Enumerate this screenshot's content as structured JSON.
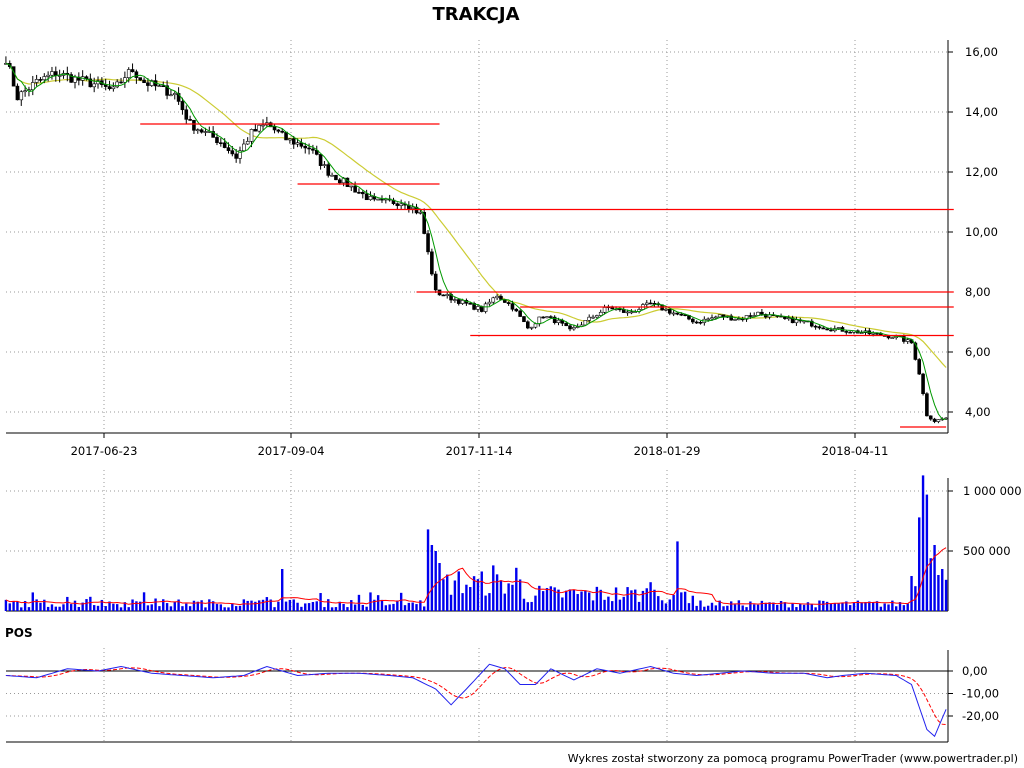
{
  "title": "TRAKCJA",
  "footer": "Wykres został stworzony za pomocą programu PowerTrader (www.powertrader.pl)",
  "colors": {
    "candle_body": "#000000",
    "sma_short": "#009900",
    "sma_long": "#cccc33",
    "level_lines": "#ff0000",
    "volume_bars": "#0000ee",
    "volume_avg": "#ff0000",
    "pos_line": "#2222ee",
    "pos_signal": "#ff0000",
    "grid": "#999999"
  },
  "chart_data": [
    {
      "name": "price",
      "type": "line",
      "x_labels": [
        "2017-06-23",
        "2017-09-04",
        "2017-11-14",
        "2018-01-29",
        "2018-04-11"
      ],
      "y_ticks": [
        "4,00",
        "6,00",
        "8,00",
        "10,00",
        "12,00",
        "14,00",
        "16,00"
      ],
      "ylim": [
        3.4,
        16.4
      ],
      "grid": true,
      "close_anchors": [
        [
          0,
          15.8
        ],
        [
          3,
          14.5
        ],
        [
          8,
          15.0
        ],
        [
          13,
          15.3
        ],
        [
          18,
          15.1
        ],
        [
          24,
          14.9
        ],
        [
          28,
          14.7
        ],
        [
          31,
          15.2
        ],
        [
          33,
          15.4
        ],
        [
          36,
          15.0
        ],
        [
          44,
          14.6
        ],
        [
          48,
          13.6
        ],
        [
          56,
          13.0
        ],
        [
          60,
          12.5
        ],
        [
          64,
          13.3
        ],
        [
          68,
          13.6
        ],
        [
          73,
          13.1
        ],
        [
          79,
          12.8
        ],
        [
          84,
          12.0
        ],
        [
          90,
          11.5
        ],
        [
          96,
          11.0
        ],
        [
          104,
          11.0
        ],
        [
          108,
          10.6
        ],
        [
          112,
          8.0
        ],
        [
          118,
          7.7
        ],
        [
          124,
          7.4
        ],
        [
          128,
          7.9
        ],
        [
          132,
          7.5
        ],
        [
          136,
          6.8
        ],
        [
          140,
          7.2
        ],
        [
          144,
          7.0
        ],
        [
          147,
          6.7
        ],
        [
          152,
          7.1
        ],
        [
          157,
          7.5
        ],
        [
          162,
          7.3
        ],
        [
          168,
          7.6
        ],
        [
          174,
          7.3
        ],
        [
          180,
          7.0
        ],
        [
          186,
          7.2
        ],
        [
          191,
          7.1
        ],
        [
          196,
          7.3
        ],
        [
          202,
          7.1
        ],
        [
          208,
          7.0
        ],
        [
          214,
          6.8
        ],
        [
          220,
          6.7
        ],
        [
          226,
          6.6
        ],
        [
          232,
          6.5
        ],
        [
          236,
          6.3
        ],
        [
          238,
          5.3
        ],
        [
          240,
          3.9
        ],
        [
          242,
          3.7
        ],
        [
          245,
          3.8
        ]
      ],
      "sma_short_label": "green moving average",
      "sma_long_label": "yellow moving average",
      "levels": [
        {
          "y": 13.6,
          "from": 35,
          "to": 113
        },
        {
          "y": 11.6,
          "from": 76,
          "to": 113
        },
        {
          "y": 10.75,
          "from": 84,
          "to": 247
        },
        {
          "y": 8.0,
          "from": 107,
          "to": 247
        },
        {
          "y": 7.5,
          "from": 134,
          "to": 247
        },
        {
          "y": 6.55,
          "from": 121,
          "to": 247
        },
        {
          "y": 3.5,
          "from": 233,
          "to": 245
        }
      ]
    },
    {
      "name": "volume",
      "type": "bar",
      "y_ticks": [
        "500 000",
        "1 000 000"
      ],
      "ylim": [
        0,
        1140000
      ],
      "spikes": [
        [
          72,
          350000
        ],
        [
          110,
          680000
        ],
        [
          111,
          550000
        ],
        [
          112,
          500000
        ],
        [
          113,
          400000
        ],
        [
          118,
          330000
        ],
        [
          127,
          380000
        ],
        [
          133,
          360000
        ],
        [
          175,
          580000
        ],
        [
          168,
          240000
        ],
        [
          239,
          1130000
        ],
        [
          240,
          970000
        ],
        [
          238,
          780000
        ],
        [
          242,
          550000
        ],
        [
          241,
          440000
        ],
        [
          243,
          300000
        ],
        [
          244,
          350000
        ],
        [
          245,
          260000
        ]
      ]
    },
    {
      "name": "POS",
      "type": "line",
      "label": "POS",
      "y_ticks": [
        "0,00",
        "-10,00",
        "-20,00"
      ],
      "ylim": [
        -31,
        8
      ],
      "pos_anchors": [
        [
          0,
          -2
        ],
        [
          8,
          -3
        ],
        [
          16,
          1
        ],
        [
          24,
          0
        ],
        [
          30,
          2
        ],
        [
          38,
          -1
        ],
        [
          46,
          -2
        ],
        [
          54,
          -3
        ],
        [
          62,
          -2
        ],
        [
          68,
          2
        ],
        [
          76,
          -2
        ],
        [
          84,
          -1
        ],
        [
          92,
          -1
        ],
        [
          100,
          -2
        ],
        [
          106,
          -3
        ],
        [
          112,
          -8
        ],
        [
          116,
          -15
        ],
        [
          120,
          -8
        ],
        [
          126,
          3
        ],
        [
          130,
          1
        ],
        [
          134,
          -6
        ],
        [
          138,
          -6
        ],
        [
          142,
          1
        ],
        [
          148,
          -4
        ],
        [
          154,
          1
        ],
        [
          160,
          -1
        ],
        [
          168,
          2
        ],
        [
          174,
          -1
        ],
        [
          180,
          -2
        ],
        [
          186,
          -1
        ],
        [
          192,
          0
        ],
        [
          200,
          -1
        ],
        [
          208,
          -1
        ],
        [
          214,
          -3
        ],
        [
          218,
          -2
        ],
        [
          224,
          -1
        ],
        [
          232,
          -2
        ],
        [
          236,
          -6
        ],
        [
          240,
          -26
        ],
        [
          242,
          -29
        ],
        [
          245,
          -17
        ]
      ]
    }
  ]
}
